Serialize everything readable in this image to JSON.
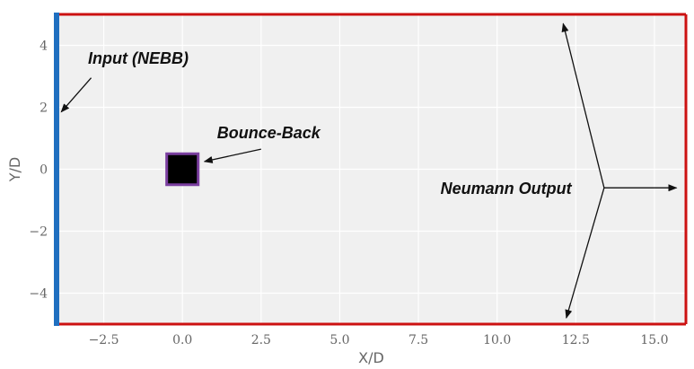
{
  "chart_data": {
    "type": "diagram",
    "xlabel": "X/D",
    "ylabel": "Y/D",
    "xlim": [
      -4,
      16
    ],
    "ylim": [
      -5,
      5
    ],
    "xticks": [
      -2.5,
      0.0,
      2.5,
      5.0,
      7.5,
      10.0,
      12.5,
      15.0
    ],
    "xtick_labels": [
      "−2.5",
      "0.0",
      "2.5",
      "5.0",
      "7.5",
      "10.0",
      "12.5",
      "15.0"
    ],
    "yticks": [
      -4,
      -2,
      0,
      2,
      4
    ],
    "ytick_labels": [
      "−4",
      "−2",
      "0",
      "2",
      "4"
    ],
    "grid": true,
    "background_color": "#f0f0f0",
    "boundaries": {
      "inlet_color": "#1f6fc0",
      "outlet_color": "#cc1111"
    },
    "obstacle": {
      "center": [
        0,
        0
      ],
      "size": 1,
      "fill": "#000000",
      "edge_color": "#7b3fa0"
    },
    "annotations": [
      {
        "id": "inlet",
        "text": "Input (NEBB)",
        "text_pos": [
          -3.0,
          3.4
        ],
        "arrow_start": [
          -2.9,
          2.95
        ],
        "arrow_end": [
          -3.85,
          1.85
        ]
      },
      {
        "id": "bounce",
        "text": "Bounce-Back",
        "text_pos": [
          1.1,
          1.0
        ],
        "arrow_start": [
          2.5,
          0.65
        ],
        "arrow_end": [
          0.7,
          0.25
        ]
      },
      {
        "id": "outlet",
        "text": "Neumann Output",
        "text_pos": [
          8.2,
          -0.8
        ],
        "hub": [
          13.4,
          -0.6
        ],
        "arrow_ends": [
          [
            12.1,
            4.7
          ],
          [
            15.7,
            -0.6
          ],
          [
            12.2,
            -4.8
          ]
        ]
      }
    ]
  }
}
